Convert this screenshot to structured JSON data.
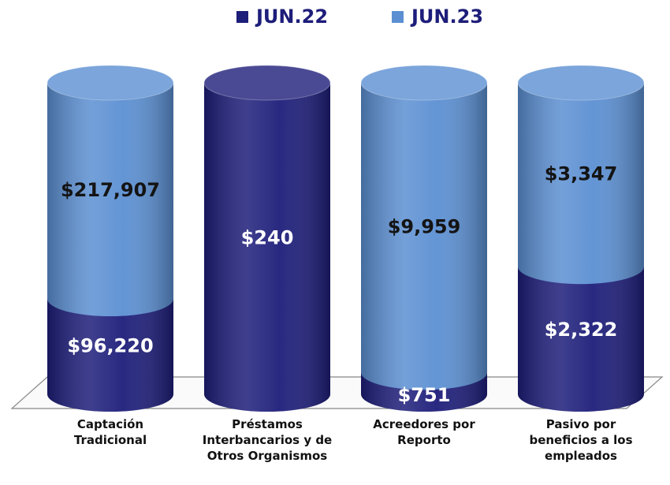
{
  "chart_data": {
    "type": "bar",
    "stacked": true,
    "normalized": true,
    "categories": [
      "Captación Tradicional",
      "Préstamos Interbancarios y de Otros Organismos",
      "Acreedores por Reporto",
      "Pasivo por beneficios a los empleados"
    ],
    "series": [
      {
        "name": "JUN.22",
        "color": "#1d1d7a",
        "values": [
          96220,
          240,
          751,
          2322
        ],
        "value_labels": [
          "$96,220",
          "$240",
          "$751",
          "$2,322"
        ]
      },
      {
        "name": "JUN.23",
        "color": "#5b8fd2",
        "values": [
          217907,
          null,
          9959,
          3347
        ],
        "value_labels": [
          "$217,907",
          null,
          "$9,959",
          "$3,347"
        ]
      }
    ],
    "legend": "top"
  }
}
